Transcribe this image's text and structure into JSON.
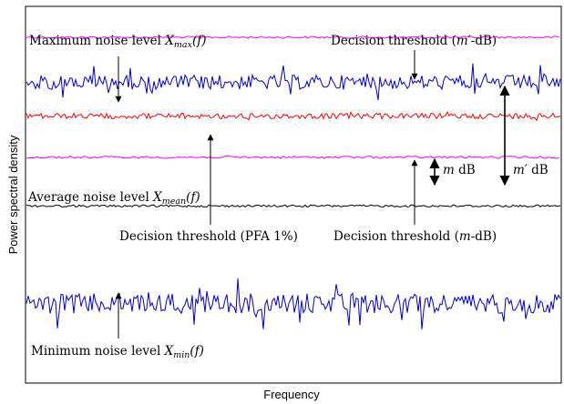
{
  "axes": {
    "xlabel": "Frequency",
    "ylabel": "Power spectral density"
  },
  "colors": {
    "max_noise": "#0000cc",
    "min_noise": "#0000cc",
    "mean_noise": "#000000",
    "pfa_threshold": "#ff0000",
    "m_threshold": "#ff00ff",
    "m_prime_threshold": "#ff00ff",
    "frame": "#000000"
  },
  "levels": {
    "m_prime_threshold": 0.92,
    "max_noise": 0.8,
    "pfa_threshold": 0.71,
    "m_threshold": 0.6,
    "mean_noise": 0.47,
    "min_noise": 0.21
  },
  "annotations": {
    "max_noise": {
      "text": "Maximum noise level ",
      "var": "X",
      "sub": "max",
      "tail": "(f)"
    },
    "m_prime_threshold": {
      "text": "Decision threshold (",
      "var": "m′",
      "tail": "-dB)"
    },
    "mean_noise": {
      "text": "Average noise level ",
      "var": "X",
      "sub": "mean",
      "tail": "(f)"
    },
    "pfa_threshold": {
      "text": "Decision threshold (PFA 1%)"
    },
    "m_threshold": {
      "text": "Decision threshold (",
      "var": "m",
      "tail": "-dB)"
    },
    "min_noise": {
      "text": "Minimum noise level ",
      "var": "X",
      "sub": "min",
      "tail": "(f)"
    },
    "m_gap": {
      "var": "m",
      "tail": " dB"
    },
    "m_prime_gap": {
      "var": "m′",
      "tail": " dB"
    }
  }
}
